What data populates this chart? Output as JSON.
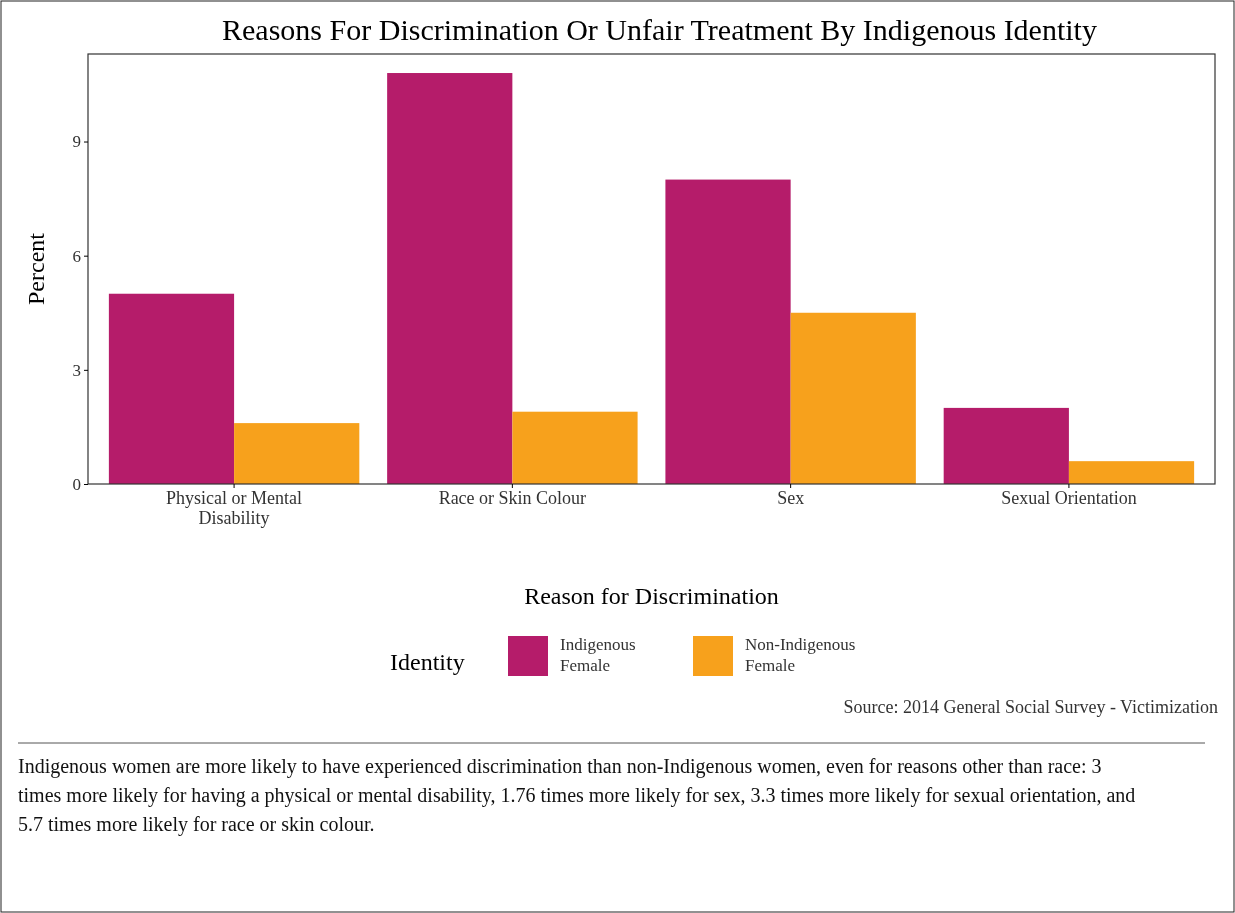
{
  "chart_data": {
    "type": "bar",
    "title": "Reasons For Discrimination Or Unfair Treatment By Indigenous Identity",
    "xlabel": "Reason for Discrimination",
    "ylabel": "Percent",
    "legend_title": "Identity",
    "categories": [
      "Physical or Mental Disability",
      "Race or Skin Colour",
      "Sex",
      "Sexual Orientation"
    ],
    "series": [
      {
        "name": "Indigenous Female",
        "color": "#b51c6a",
        "values": [
          5.0,
          10.8,
          8.0,
          2.0
        ]
      },
      {
        "name": "Non-Indigenous Female",
        "color": "#f7a11c",
        "values": [
          1.6,
          1.9,
          4.5,
          0.6
        ]
      }
    ],
    "ylim": [
      0,
      11.3
    ],
    "yticks": [
      0,
      3,
      6,
      9
    ],
    "legend": "bottom",
    "annotations": [
      "Source: 2014 General Social Survey - Victimization",
      "Indigenous women are more likely to have experienced discrimination than non-Indigenous women, even for reasons other than race: 3 times more likely for having a physical or mental disability, 1.76 times more likely for sex, 3.3 times more likely for sexual orientation, and 5.7 times more likely for race or skin colour."
    ]
  }
}
